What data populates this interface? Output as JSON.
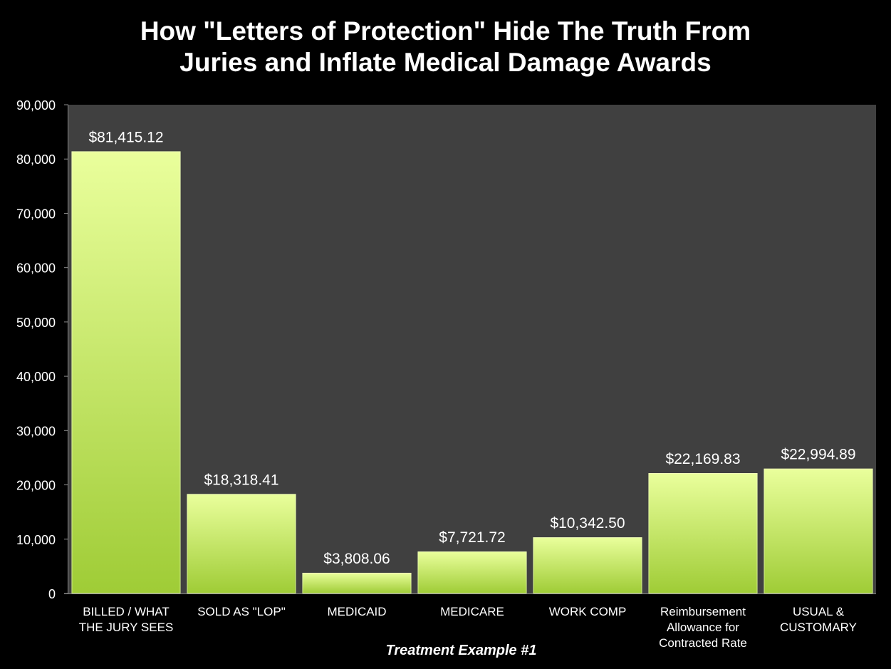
{
  "title": {
    "line1": "How \"Letters of Protection\" Hide The Truth From",
    "line2": "Juries and Inflate Medical Damage Awards"
  },
  "colors": {
    "background": "#000000",
    "plot_area": "#404040",
    "bar_top": "#eaff9c",
    "bar_bottom": "#9fcc36",
    "text": "#ffffff"
  },
  "chart_data": {
    "type": "bar",
    "title": "How \"Letters of Protection\" Hide The Truth From Juries and Inflate Medical Damage Awards",
    "xlabel": "Treatment Example #1",
    "ylabel": "",
    "ylim": [
      0,
      90000
    ],
    "yticks": [
      0,
      10000,
      20000,
      30000,
      40000,
      50000,
      60000,
      70000,
      80000,
      90000
    ],
    "ytick_labels": [
      "0",
      "10,000",
      "20,000",
      "30,000",
      "40,000",
      "50,000",
      "60,000",
      "70,000",
      "80,000",
      "90,000"
    ],
    "grid": false,
    "categories": [
      [
        "BILLED / WHAT",
        "THE JURY SEES"
      ],
      [
        "SOLD AS \"LOP\""
      ],
      [
        "MEDICAID"
      ],
      [
        "MEDICARE"
      ],
      [
        "WORK COMP"
      ],
      [
        "Reimbursement",
        "Allowance for",
        "Contracted Rate"
      ],
      [
        "USUAL &",
        "CUSTOMARY"
      ]
    ],
    "values": [
      81415.12,
      18318.41,
      3808.06,
      7721.72,
      10342.5,
      22169.83,
      22994.89
    ],
    "data_labels": [
      "$81,415.12",
      "$18,318.41",
      "$3,808.06",
      "$7,721.72",
      "$10,342.50",
      "$22,169.83",
      "$22,994.89"
    ]
  }
}
